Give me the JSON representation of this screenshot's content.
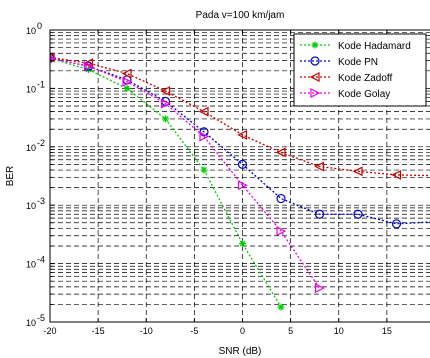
{
  "chart_data": {
    "type": "line",
    "title": "Pada v=100 km/jam",
    "xlabel": "SNR (dB)",
    "ylabel": "BER",
    "x_ticks": [
      -20,
      -15,
      -10,
      -5,
      0,
      5,
      10,
      15,
      20
    ],
    "y_scale": "log",
    "y_ticks": [
      "10^-5",
      "10^-4",
      "10^-3",
      "10^-2",
      "10^-1",
      "10^0"
    ],
    "xlim": [
      -20,
      20
    ],
    "ylim": [
      1e-05,
      1
    ],
    "grid": true,
    "legend_position": "top-right",
    "series": [
      {
        "name": "Kode Hadamard",
        "color": "#00cc00",
        "marker": "star",
        "x": [
          -20,
          -16,
          -12,
          -8,
          -4,
          0,
          4
        ],
        "y": [
          0.33,
          0.21,
          0.1,
          0.03,
          0.004,
          0.00022,
          1.8e-05
        ]
      },
      {
        "name": "Kode PN",
        "color": "#0000cc",
        "marker": "circle",
        "x": [
          -20,
          -16,
          -12,
          -8,
          -4,
          0,
          4,
          8,
          12,
          16,
          20
        ],
        "y": [
          0.33,
          0.24,
          0.14,
          0.06,
          0.018,
          0.005,
          0.0013,
          0.0007,
          0.0007,
          0.00048,
          0.00052
        ]
      },
      {
        "name": "Kode Zadoff",
        "color": "#cc0000",
        "marker": "triangle-left",
        "x": [
          -20,
          -16,
          -12,
          -8,
          -4,
          0,
          4,
          8,
          12,
          16,
          20
        ],
        "y": [
          0.34,
          0.27,
          0.18,
          0.09,
          0.04,
          0.016,
          0.008,
          0.0046,
          0.0038,
          0.0033,
          0.0032
        ]
      },
      {
        "name": "Kode Golay",
        "color": "#ee00ee",
        "marker": "triangle-right",
        "x": [
          -20,
          -16,
          -12,
          -8,
          -4,
          0,
          4,
          8
        ],
        "y": [
          0.33,
          0.24,
          0.13,
          0.055,
          0.015,
          0.0022,
          0.00036,
          3.8e-05
        ]
      }
    ]
  }
}
